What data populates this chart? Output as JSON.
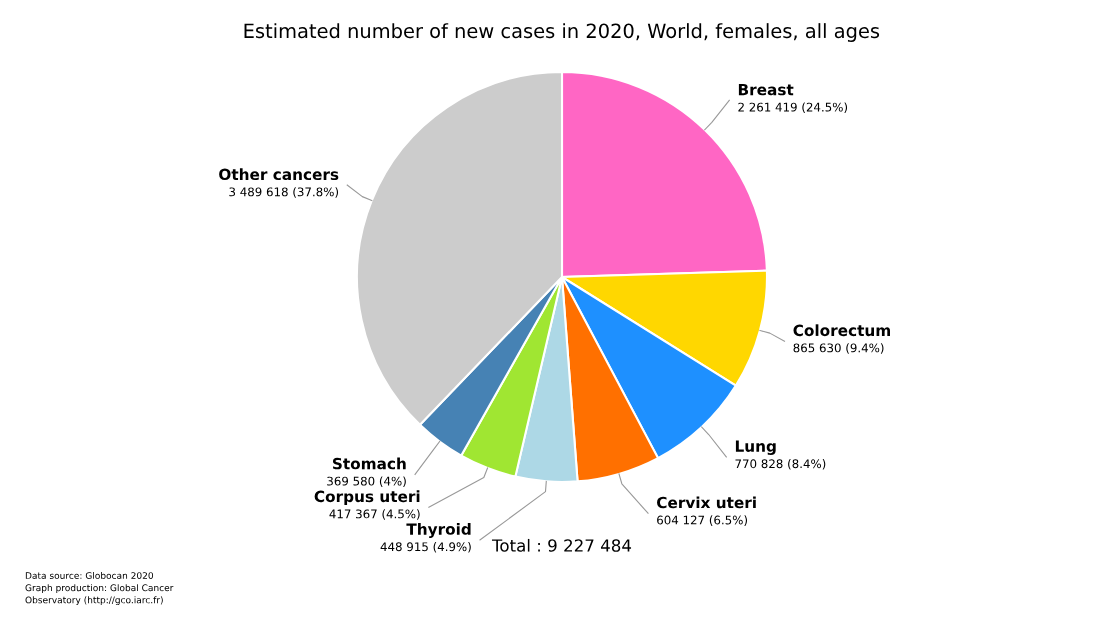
{
  "chart_data": {
    "type": "pie",
    "title": "Estimated number of new cases in 2020, World, females, all ages",
    "categories": [
      "Breast",
      "Colorectum",
      "Lung",
      "Cervix uteri",
      "Thyroid",
      "Corpus uteri",
      "Stomach",
      "Other cancers"
    ],
    "values": [
      2261419,
      865630,
      770828,
      604127,
      448915,
      417367,
      369580,
      3489618
    ],
    "value_labels": [
      "2 261 419 (24.5%)",
      "865 630 (9.4%)",
      "770 828 (8.4%)",
      "604 127 (6.5%)",
      "448 915 (4.9%)",
      "417 367 (4.5%)",
      "369 580 (4%)",
      "3 489 618 (37.8%)"
    ],
    "colors": [
      "#ff66c4",
      "#ffd700",
      "#1e90ff",
      "#ff7000",
      "#add8e6",
      "#a0e632",
      "#4682b4",
      "#cccccc"
    ],
    "annotations": [
      "Total : 9 227 484",
      "Data source: Globocan 2020\nGraph production: Global Cancer\nObservatory (http://gco.iarc.fr)"
    ]
  }
}
